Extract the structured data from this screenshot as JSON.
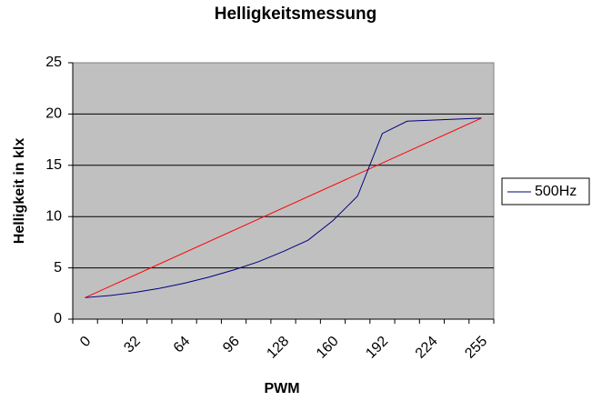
{
  "chart_data": {
    "type": "line",
    "title": "Helligkeitsmessung",
    "x_label": "PWM",
    "y_label": "Helligkeit in klx",
    "categories": [
      0,
      null,
      32,
      null,
      64,
      null,
      96,
      null,
      128,
      null,
      160,
      null,
      192,
      null,
      224,
      null,
      255
    ],
    "series": [
      {
        "name": "500Hz",
        "color": "#000080",
        "values": [
          2.1,
          2.3,
          2.6,
          3.0,
          3.5,
          4.1,
          4.8,
          5.6,
          6.6,
          7.7,
          9.6,
          12.0,
          18.1,
          19.3,
          19.4,
          19.5,
          19.6
        ]
      }
    ],
    "trendline": {
      "color": "#ff0000",
      "values": [
        2.1,
        19.6
      ]
    },
    "ylim": [
      0,
      25
    ],
    "yticks": [
      0,
      5,
      10,
      15,
      20,
      25
    ],
    "grid": true,
    "legend": "right",
    "plot_color": "#c0c0c0"
  }
}
